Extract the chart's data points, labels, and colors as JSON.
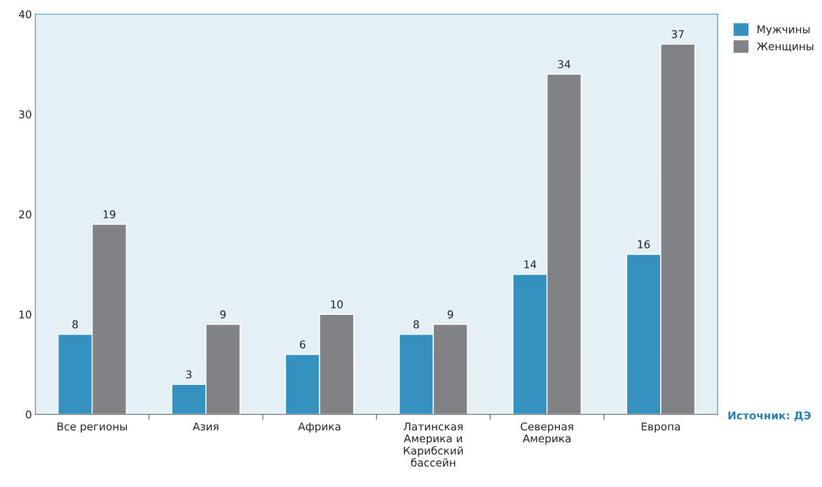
{
  "chart_data": {
    "type": "bar",
    "categories": [
      "Все регионы",
      "Азия",
      "Африка",
      "Латинская\nАмерика и\nКарибский\nбассейн",
      "Северная\nАмерика",
      "Европа"
    ],
    "series": [
      {
        "name": "Мужчины",
        "color": "#3592c0",
        "values": [
          8,
          3,
          6,
          8,
          14,
          16
        ]
      },
      {
        "name": "Женщины",
        "color": "#818285",
        "values": [
          19,
          9,
          10,
          9,
          34,
          37
        ]
      }
    ],
    "ylim": [
      0,
      40
    ],
    "yticks": [
      0,
      10,
      20,
      30,
      40
    ],
    "grid": false,
    "legend": "top right",
    "data_labels": true,
    "annotations": [
      "Источник: ДЭ"
    ]
  }
}
